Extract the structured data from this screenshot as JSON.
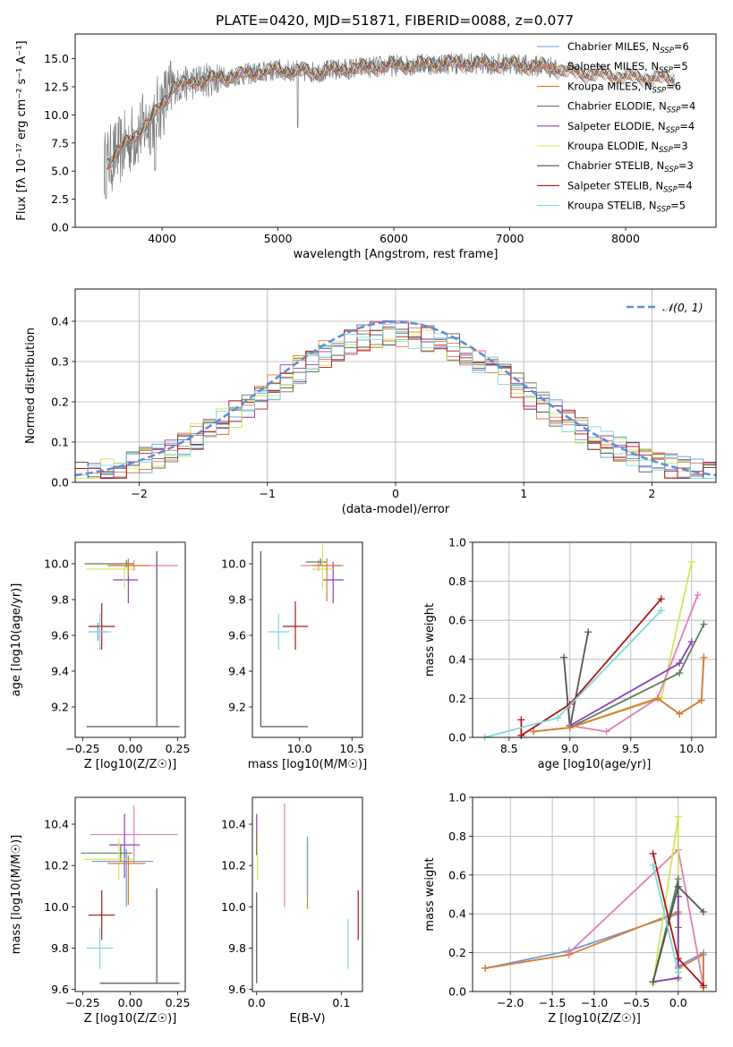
{
  "figure_title": "PLATE=0420, MJD=51871, FIBERID=0088, z=0.077",
  "colors": {
    "blue": "#6b9bd8",
    "salmon": "#e8735a",
    "orange": "#dd7d2b",
    "green": "#5b7f5b",
    "purple": "#8c3fb8",
    "yellow": "#cfe85a",
    "dark": "#555555",
    "red": "#b01515",
    "cyan": "#7fd8de",
    "pink": "#e07fb8",
    "gaussian": "#5b8fd8"
  },
  "chart_data": [
    {
      "id": "spectrum",
      "type": "line",
      "title": "PLATE=0420, MJD=51871, FIBERID=0088, z=0.077",
      "xlabel": "wavelength [Angstrom, rest frame]",
      "ylabel": "Flux [fλ 10⁻¹⁷ erg cm⁻² s⁻¹ A⁻¹]",
      "xlim": [
        3250,
        8780
      ],
      "ylim": [
        0,
        17.2
      ],
      "xticks": [
        4000,
        5000,
        6000,
        7000,
        8000
      ],
      "yticks": [
        0.0,
        2.5,
        5.0,
        7.5,
        10.0,
        12.5,
        15.0
      ],
      "legend_position": "top-right",
      "legend": [
        {
          "label": "Chabrier MILES, N_SSP=6",
          "color": "#6b9bd8"
        },
        {
          "label": "Salpeter MILES, N_SSP=5",
          "color": "#e8735a"
        },
        {
          "label": "Kroupa MILES, N_SSP=6",
          "color": "#dd7d2b"
        },
        {
          "label": "Chabrier ELODIE, N_SSP=4",
          "color": "#5b7f5b"
        },
        {
          "label": "Salpeter ELODIE, N_SSP=4",
          "color": "#8c3fb8"
        },
        {
          "label": "Kroupa ELODIE, N_SSP=3",
          "color": "#cfe85a"
        },
        {
          "label": "Chabrier STELIB, N_SSP=3",
          "color": "#555555"
        },
        {
          "label": "Salpeter STELIB, N_SSP=4",
          "color": "#b01515"
        },
        {
          "label": "Kroupa STELIB, N_SSP=5",
          "color": "#7fd8de"
        }
      ],
      "data_envelope": {
        "x": [
          3500,
          3600,
          3700,
          3800,
          3900,
          4000,
          4100,
          4300,
          4500,
          4700,
          5000,
          5300,
          5600,
          6000,
          6500,
          7000,
          7400
        ],
        "y": [
          5.5,
          6.5,
          7.5,
          8.5,
          9.5,
          11.0,
          12.5,
          13.0,
          13.3,
          13.6,
          14.0,
          13.8,
          14.1,
          14.4,
          14.6,
          14.5,
          14.2
        ]
      },
      "model_extension": {
        "x": [
          7400,
          7600,
          7800,
          8000,
          8200,
          8400
        ],
        "y": [
          14.1,
          13.7,
          13.6,
          13.4,
          13.3,
          13.2
        ]
      }
    },
    {
      "id": "residuals",
      "type": "histogram",
      "xlabel": "(data-model)/error",
      "ylabel": "Normed distribution",
      "xlim": [
        -2.5,
        2.5
      ],
      "ylim": [
        0,
        0.48
      ],
      "xticks": [
        -2,
        -1,
        0,
        1,
        2
      ],
      "yticks": [
        0.0,
        0.1,
        0.2,
        0.3,
        0.4
      ],
      "grid": true,
      "legend_position": "top-right",
      "legend": [
        {
          "label": "𝒩(0, 1)",
          "style": "dashed"
        }
      ],
      "bins": [
        -2.5,
        2.5,
        50
      ]
    },
    {
      "id": "age-vs-Z",
      "type": "errorbar",
      "xlabel": "Z [log10(Z/Z☉)]",
      "ylabel": "age  [log10(age/yr)]",
      "xlim": [
        -0.29,
        0.29
      ],
      "ylim": [
        9.03,
        10.12
      ],
      "xticks": [
        -0.25,
        0.0,
        0.25
      ],
      "yticks": [
        9.2,
        9.4,
        9.6,
        9.8,
        10.0
      ],
      "points": [
        {
          "color": "#6b9bd8",
          "x": -0.17,
          "y": 9.62,
          "xerr": [
            0.05,
            0.05
          ],
          "yerr": [
            0.05,
            0.05
          ]
        },
        {
          "color": "#5b7f5b",
          "x": -0.02,
          "y": 10.0,
          "xerr": [
            0.22,
            0.04
          ],
          "yerr": [
            0.02,
            0.02
          ]
        },
        {
          "color": "#e07fb8",
          "x": 0.02,
          "y": 9.99,
          "xerr": [
            0.13,
            0.23
          ],
          "yerr": [
            0.03,
            0.03
          ]
        },
        {
          "color": "#8c3fb8",
          "x": -0.01,
          "y": 9.91,
          "xerr": [
            0.08,
            0.05
          ],
          "yerr": [
            0.13,
            0.1
          ]
        },
        {
          "color": "#cfe85a",
          "x": -0.03,
          "y": 9.97,
          "xerr": [
            0.2,
            0.06
          ],
          "yerr": [
            0.11,
            0.04
          ]
        },
        {
          "color": "#dd7d2b",
          "x": -0.01,
          "y": 9.99,
          "xerr": [
            0.11,
            0.11
          ],
          "yerr": [
            0.06,
            0.04
          ]
        },
        {
          "color": "#555555",
          "x": 0.14,
          "y": 9.09,
          "xerr": [
            0.37,
            0.12
          ],
          "yerr": [
            0.0,
            0.98
          ]
        },
        {
          "color": "#b01515",
          "x": -0.15,
          "y": 9.65,
          "xerr": [
            0.07,
            0.07
          ],
          "yerr": [
            0.13,
            0.13
          ]
        },
        {
          "color": "#7fd8de",
          "x": -0.16,
          "y": 9.62,
          "xerr": [
            0.06,
            0.06
          ],
          "yerr": [
            0.1,
            0.1
          ]
        }
      ]
    },
    {
      "id": "age-vs-mass",
      "type": "errorbar",
      "xlabel": "mass [log10(M/M☉)]",
      "ylabel": "",
      "xlim": [
        9.55,
        10.6
      ],
      "ylim": [
        9.03,
        10.12
      ],
      "xticks": [
        10.0,
        10.5
      ],
      "yticks": [
        9.2,
        9.4,
        9.6,
        9.8,
        10.0
      ],
      "points": [
        {
          "color": "#e07fb8",
          "x": 10.18,
          "y": 9.99,
          "xerr": [
            0.17,
            0.24
          ],
          "yerr": [
            0.03,
            0.03
          ]
        },
        {
          "color": "#5b7f5b",
          "x": 10.2,
          "y": 10.01,
          "xerr": [
            0.14,
            0.06
          ],
          "yerr": [
            0.02,
            0.02
          ]
        },
        {
          "color": "#8c3fb8",
          "x": 10.32,
          "y": 9.91,
          "xerr": [
            0.1,
            0.1
          ],
          "yerr": [
            0.13,
            0.1
          ]
        },
        {
          "color": "#cfe85a",
          "x": 10.22,
          "y": 9.97,
          "xerr": [
            0.1,
            0.1
          ],
          "yerr": [
            0.11,
            0.14
          ]
        },
        {
          "color": "#dd7d2b",
          "x": 10.26,
          "y": 9.99,
          "xerr": [
            0.14,
            0.14
          ],
          "yerr": [
            0.2,
            0.04
          ]
        },
        {
          "color": "#555555",
          "x": 9.63,
          "y": 9.09,
          "xerr": [
            0.0,
            0.45
          ],
          "yerr": [
            0.0,
            0.98
          ]
        },
        {
          "color": "#b01515",
          "x": 9.96,
          "y": 9.65,
          "xerr": [
            0.12,
            0.12
          ],
          "yerr": [
            0.13,
            0.14
          ]
        },
        {
          "color": "#7fd8de",
          "x": 9.8,
          "y": 9.62,
          "xerr": [
            0.1,
            0.1
          ],
          "yerr": [
            0.1,
            0.1
          ]
        }
      ]
    },
    {
      "id": "weight-vs-age",
      "type": "line",
      "xlabel": "age  [log10(age/yr)]",
      "ylabel": "mass weight",
      "xlim": [
        8.2,
        10.2
      ],
      "ylim": [
        0,
        1.0
      ],
      "xticks": [
        8.5,
        9.0,
        9.5,
        10.0
      ],
      "yticks": [
        0.0,
        0.2,
        0.4,
        0.6,
        0.8,
        1.0
      ],
      "grid": true,
      "series": [
        {
          "color": "#555555",
          "x": [
            8.95,
            9.0,
            9.15
          ],
          "y": [
            0.41,
            0.05,
            0.54
          ]
        },
        {
          "color": "#cfe85a",
          "x": [
            9.0,
            9.75,
            10.0
          ],
          "y": [
            0.05,
            0.2,
            0.9
          ]
        },
        {
          "color": "#e07fb8",
          "x": [
            9.0,
            9.3,
            9.72,
            10.05
          ],
          "y": [
            0.06,
            0.03,
            0.2,
            0.73
          ]
        },
        {
          "color": "#5b7f5b",
          "x": [
            9.0,
            9.9,
            10.1
          ],
          "y": [
            0.05,
            0.33,
            0.58
          ]
        },
        {
          "color": "#8c3fb8",
          "x": [
            9.0,
            9.9,
            10.0
          ],
          "y": [
            0.06,
            0.38,
            0.49
          ]
        },
        {
          "color": "#6b9bd8",
          "x": [
            8.7,
            9.0,
            9.72,
            9.9,
            10.08,
            10.1
          ],
          "y": [
            0.03,
            0.05,
            0.2,
            0.12,
            0.19,
            0.41
          ]
        },
        {
          "color": "#dd7d2b",
          "x": [
            8.7,
            9.0,
            9.72,
            9.9,
            10.08,
            10.1
          ],
          "y": [
            0.03,
            0.05,
            0.2,
            0.12,
            0.19,
            0.41
          ]
        },
        {
          "color": "#b01515",
          "x": [
            8.6,
            8.6,
            9.0,
            9.75
          ],
          "y": [
            0.09,
            0.01,
            0.17,
            0.71
          ]
        },
        {
          "color": "#7fd8de",
          "x": [
            8.3,
            8.9,
            9.75
          ],
          "y": [
            0.0,
            0.1,
            0.65
          ]
        }
      ]
    },
    {
      "id": "mass-vs-Z",
      "type": "errorbar",
      "xlabel": "Z [log10(Z/Z☉)]",
      "ylabel": "mass [log10(M/M☉)]",
      "xlim": [
        -0.29,
        0.29
      ],
      "ylim": [
        9.59,
        10.53
      ],
      "xticks": [
        -0.25,
        0.0,
        0.25
      ],
      "yticks": [
        9.6,
        9.8,
        10.0,
        10.2,
        10.4
      ],
      "points": [
        {
          "color": "#6b9bd8",
          "x": -0.02,
          "y": 10.22,
          "xerr": [
            0.18,
            0.14
          ],
          "yerr": [
            0.22,
            0.06
          ]
        },
        {
          "color": "#e07fb8",
          "x": 0.02,
          "y": 10.35,
          "xerr": [
            0.23,
            0.23
          ],
          "yerr": [
            0.14,
            0.14
          ]
        },
        {
          "color": "#5b7f5b",
          "x": -0.05,
          "y": 10.26,
          "xerr": [
            0.21,
            0.06
          ],
          "yerr": [
            0.04,
            0.04
          ]
        },
        {
          "color": "#8c3fb8",
          "x": -0.03,
          "y": 10.3,
          "xerr": [
            0.08,
            0.08
          ],
          "yerr": [
            0.16,
            0.15
          ]
        },
        {
          "color": "#cfe85a",
          "x": -0.06,
          "y": 10.23,
          "xerr": [
            0.18,
            0.08
          ],
          "yerr": [
            0.1,
            0.1
          ]
        },
        {
          "color": "#dd7d2b",
          "x": -0.01,
          "y": 10.21,
          "xerr": [
            0.11,
            0.09
          ],
          "yerr": [
            0.2,
            0.04
          ]
        },
        {
          "color": "#555555",
          "x": 0.14,
          "y": 9.63,
          "xerr": [
            0.3,
            0.12
          ],
          "yerr": [
            0.0,
            0.46
          ]
        },
        {
          "color": "#b01515",
          "x": -0.15,
          "y": 9.96,
          "xerr": [
            0.07,
            0.07
          ],
          "yerr": [
            0.12,
            0.12
          ]
        },
        {
          "color": "#7fd8de",
          "x": -0.16,
          "y": 9.8,
          "xerr": [
            0.07,
            0.07
          ],
          "yerr": [
            0.1,
            0.1
          ]
        }
      ]
    },
    {
      "id": "mass-vs-EBV",
      "type": "errorbar",
      "xlabel": "E(B-V)",
      "ylabel": "",
      "xlim": [
        -0.005,
        0.125
      ],
      "ylim": [
        9.59,
        10.53
      ],
      "xticks": [
        0.0,
        0.1
      ],
      "yticks": [
        9.6,
        9.8,
        10.0,
        10.2,
        10.4
      ],
      "points": [
        {
          "color": "#8c3fb8",
          "x": 0.0,
          "y": 10.35,
          "yerr": [
            0.1,
            0.1
          ]
        },
        {
          "color": "#cfe85a",
          "x": 0.001,
          "y": 10.25,
          "yerr": [
            0.12,
            0.12
          ]
        },
        {
          "color": "#555555",
          "x": 0.0,
          "y": 9.85,
          "yerr": [
            0.22,
            0.22
          ]
        },
        {
          "color": "#e07fb8",
          "x": 0.033,
          "y": 10.25,
          "yerr": [
            0.25,
            0.25
          ]
        },
        {
          "color": "#dd7d2b",
          "x": 0.06,
          "y": 10.15,
          "yerr": [
            0.16,
            0.16
          ]
        },
        {
          "color": "#6b9bd8",
          "x": 0.06,
          "y": 10.2,
          "yerr": [
            0.14,
            0.14
          ]
        },
        {
          "color": "#7fd8de",
          "x": 0.108,
          "y": 9.82,
          "yerr": [
            0.12,
            0.12
          ]
        },
        {
          "color": "#b01515",
          "x": 0.12,
          "y": 9.96,
          "yerr": [
            0.12,
            0.12
          ]
        }
      ]
    },
    {
      "id": "weight-vs-Z",
      "type": "line",
      "xlabel": "Z [log10(Z/Z☉)]",
      "ylabel": "mass weight",
      "xlim": [
        -2.45,
        0.45
      ],
      "ylim": [
        0,
        1.0
      ],
      "xticks": [
        -2.0,
        -1.5,
        -1.0,
        -0.5,
        0.0
      ],
      "yticks": [
        0.0,
        0.2,
        0.4,
        0.6,
        0.8,
        1.0
      ],
      "grid": true,
      "series": [
        {
          "color": "#6b9bd8",
          "x": [
            -2.3,
            -1.3,
            0.0,
            0.0,
            0.3,
            0.3
          ],
          "y": [
            0.12,
            0.21,
            0.4,
            0.13,
            0.2,
            0.03
          ]
        },
        {
          "color": "#dd7d2b",
          "x": [
            -2.3,
            -1.3,
            0.0,
            0.0,
            0.3,
            0.3
          ],
          "y": [
            0.12,
            0.19,
            0.41,
            0.12,
            0.19,
            0.02
          ]
        },
        {
          "color": "#e07fb8",
          "x": [
            -1.3,
            0.0,
            0.3
          ],
          "y": [
            0.2,
            0.73,
            0.03
          ]
        },
        {
          "color": "#cfe85a",
          "x": [
            -0.3,
            0.0,
            0.0
          ],
          "y": [
            0.04,
            0.9,
            0.06
          ]
        },
        {
          "color": "#5b7f5b",
          "x": [
            -0.3,
            0.0,
            0.0
          ],
          "y": [
            0.05,
            0.58,
            0.33
          ]
        },
        {
          "color": "#8c3fb8",
          "x": [
            -0.3,
            0.0,
            0.0
          ],
          "y": [
            0.05,
            0.07,
            0.49
          ]
        },
        {
          "color": "#555555",
          "x": [
            -0.3,
            0.0,
            0.3
          ],
          "y": [
            0.05,
            0.54,
            0.41
          ]
        },
        {
          "color": "#b01515",
          "x": [
            -0.3,
            0.0,
            0.3
          ],
          "y": [
            0.71,
            0.17,
            0.03
          ]
        },
        {
          "color": "#7fd8de",
          "x": [
            -0.3,
            0.0
          ],
          "y": [
            0.65,
            0.1
          ]
        }
      ]
    }
  ]
}
